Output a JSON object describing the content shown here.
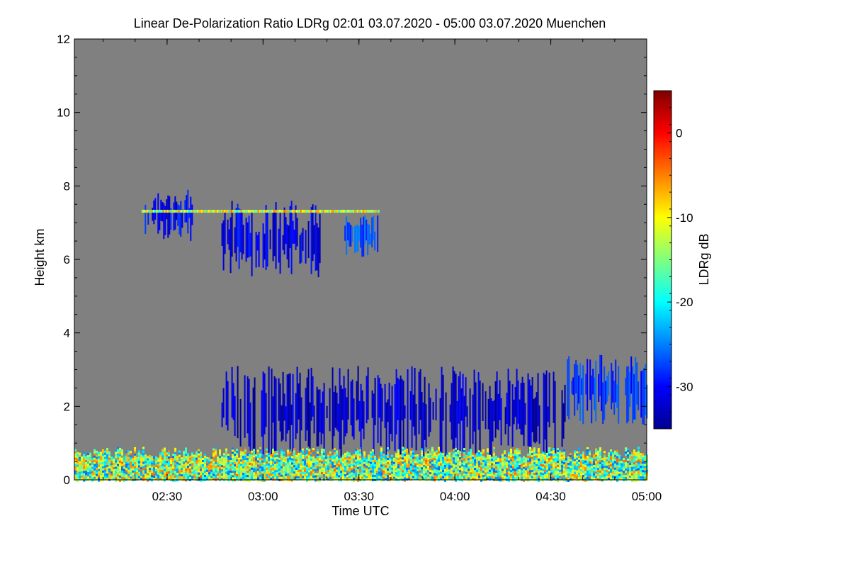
{
  "chart_data": {
    "type": "heatmap",
    "title": "Linear De-Polarization Ratio LDRg   02:01 03.07.2020 - 05:00 03.07.2020 Muenchen",
    "xlabel": "Time UTC",
    "ylabel": "Height km",
    "colorbar_label": "LDRg dB",
    "xlim": [
      "02:01",
      "05:00"
    ],
    "ylim": [
      0,
      12
    ],
    "x_ticks": [
      "02:30",
      "03:00",
      "03:30",
      "04:00",
      "04:30",
      "05:00"
    ],
    "y_ticks": [
      0,
      2,
      4,
      6,
      8,
      10,
      12
    ],
    "colorbar_range": [
      -35,
      5
    ],
    "colorbar_ticks": [
      0,
      -10,
      -20,
      -30
    ],
    "no_data_color": "#808080",
    "colormap": "jet",
    "features": [
      {
        "time_start": "02:23",
        "time_end": "02:38",
        "height_bottom": 6.5,
        "height_top": 7.9,
        "ldr_db": -30
      },
      {
        "time_start": "02:47",
        "time_end": "03:18",
        "height_bottom": 5.5,
        "height_top": 7.6,
        "ldr_db": -31
      },
      {
        "time_start": "03:25",
        "time_end": "03:36",
        "height_bottom": 6.0,
        "height_top": 7.2,
        "ldr_db": -27
      },
      {
        "time_start": "02:22",
        "time_end": "03:36",
        "height_bottom": 7.27,
        "height_top": 7.35,
        "ldr_db": -12
      },
      {
        "time_start": "02:47",
        "time_end": "04:35",
        "height_bottom": 0.6,
        "height_top": 3.1,
        "ldr_db": -32
      },
      {
        "time_start": "04:35",
        "time_end": "05:00",
        "height_bottom": 1.5,
        "height_top": 3.4,
        "ldr_db": -28
      },
      {
        "time_start": "02:01",
        "time_end": "05:00",
        "height_bottom": 0.0,
        "height_top": 0.9,
        "ldr_db": -15
      }
    ]
  }
}
